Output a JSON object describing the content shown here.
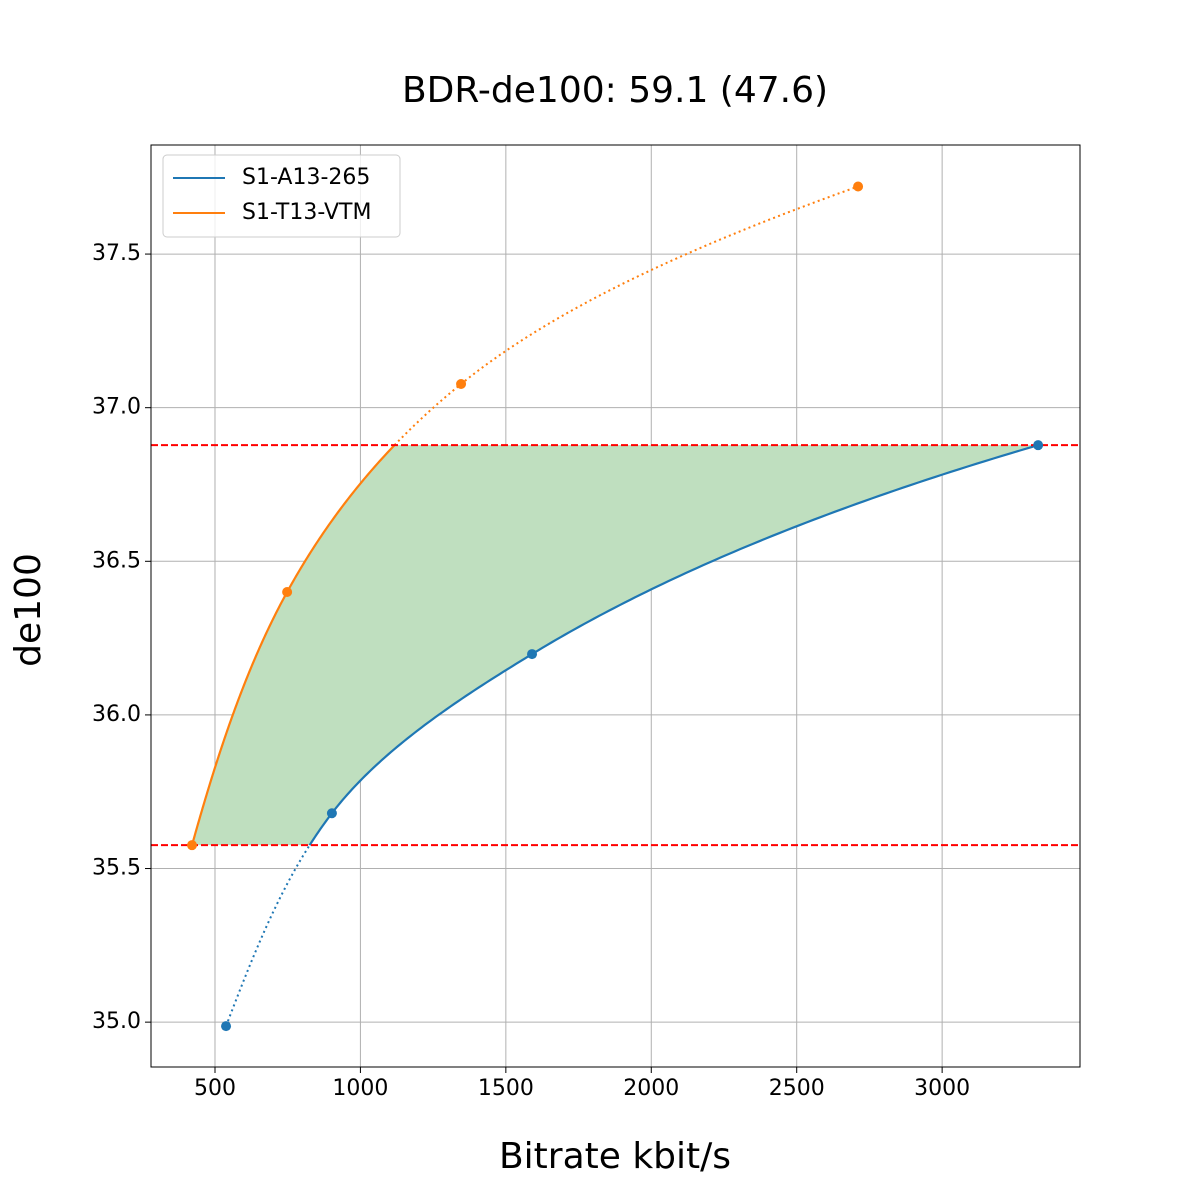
{
  "chart_data": {
    "type": "line",
    "title": "BDR-de100: 59.1 (47.6)",
    "x_label": "Bitrate kbit/s",
    "y_label": "de100",
    "series": [
      {
        "name": "S1-A13-265",
        "color": "#1f77b4",
        "x": [
          538,
          902,
          1590,
          3330
        ],
        "values": [
          34.987,
          35.68,
          36.198,
          36.878
        ]
      },
      {
        "name": "S1-T13-VTM",
        "color": "#ff7f0e",
        "x": [
          421,
          748,
          1346,
          2711
        ],
        "values": [
          35.576,
          36.4,
          37.077,
          37.72
        ]
      }
    ],
    "reference_lines": {
      "values": [
        35.576,
        36.878
      ],
      "color": "#ff0000"
    },
    "fill_color": "#bfdfbf",
    "xlim": [
      280,
      3474
    ],
    "ylim": [
      34.854,
      37.855
    ],
    "xticks": [
      500,
      1000,
      1500,
      2000,
      2500,
      3000
    ],
    "yticks": [
      {
        "value": 35,
        "label": "35.0"
      },
      35.5,
      {
        "value": 36,
        "label": "36.0"
      },
      36.5,
      {
        "value": 37,
        "label": "37.0"
      },
      37.5
    ],
    "grid": true,
    "legend": "upper left"
  }
}
